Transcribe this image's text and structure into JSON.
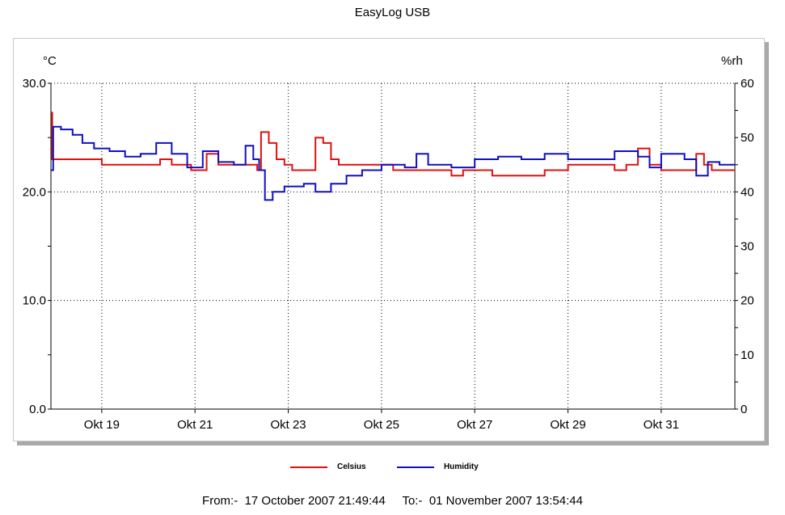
{
  "title": "EasyLog USB",
  "footer": {
    "from_label": "From:-",
    "from_value": "17 October 2007 21:49:44",
    "to_label": "To:-",
    "to_value": "01 November 2007 13:54:44"
  },
  "colors": {
    "celsius": "#e01010",
    "humidity": "#1010c0",
    "grid": "#000000"
  },
  "chart_data": {
    "type": "line",
    "title": "EasyLog USB",
    "x_range": [
      "2007-10-17 21:49:44",
      "2007-11-01 13:54:44"
    ],
    "x_ticks": [
      "Okt 19",
      "Okt 21",
      "Okt 23",
      "Okt 25",
      "Okt 27",
      "Okt 29",
      "Okt 31"
    ],
    "y_left": {
      "label": "°C",
      "ylim": [
        0,
        30
      ],
      "ticks": [
        "0.0",
        "10.0",
        "20.0",
        "30.0"
      ]
    },
    "y_right": {
      "label": "%rh",
      "ylim": [
        0,
        60
      ],
      "ticks": [
        "0",
        "10",
        "20",
        "30",
        "40",
        "50",
        "60"
      ]
    },
    "grid": true,
    "legend": "bottom",
    "series": [
      {
        "name": "Celsius",
        "axis": "left",
        "points": [
          [
            "2007-10-17 21:49",
            27.3
          ],
          [
            "2007-10-17 22:30",
            23.0
          ],
          [
            "2007-10-18 06:00",
            23.0
          ],
          [
            "2007-10-18 21:00",
            23.0
          ],
          [
            "2007-10-19 00:00",
            22.5
          ],
          [
            "2007-10-19 12:00",
            22.5
          ],
          [
            "2007-10-20 00:00",
            22.5
          ],
          [
            "2007-10-20 06:00",
            23.0
          ],
          [
            "2007-10-20 12:00",
            22.5
          ],
          [
            "2007-10-20 18:00",
            22.5
          ],
          [
            "2007-10-20 22:00",
            22.0
          ],
          [
            "2007-10-21 06:00",
            23.5
          ],
          [
            "2007-10-21 12:00",
            22.5
          ],
          [
            "2007-10-21 18:00",
            22.5
          ],
          [
            "2007-10-22 00:00",
            22.5
          ],
          [
            "2007-10-22 06:00",
            22.5
          ],
          [
            "2007-10-22 08:00",
            22.0
          ],
          [
            "2007-10-22 10:00",
            25.5
          ],
          [
            "2007-10-22 14:00",
            24.5
          ],
          [
            "2007-10-22 18:00",
            23.0
          ],
          [
            "2007-10-22 22:00",
            22.5
          ],
          [
            "2007-10-23 02:00",
            22.0
          ],
          [
            "2007-10-23 10:00",
            22.0
          ],
          [
            "2007-10-23 14:00",
            25.0
          ],
          [
            "2007-10-23 18:00",
            24.5
          ],
          [
            "2007-10-23 22:00",
            23.0
          ],
          [
            "2007-10-24 02:00",
            22.5
          ],
          [
            "2007-10-24 12:00",
            22.5
          ],
          [
            "2007-10-25 00:00",
            22.5
          ],
          [
            "2007-10-25 06:00",
            22.0
          ],
          [
            "2007-10-26 00:00",
            22.0
          ],
          [
            "2007-10-26 12:00",
            21.5
          ],
          [
            "2007-10-26 18:00",
            22.0
          ],
          [
            "2007-10-27 06:00",
            22.0
          ],
          [
            "2007-10-27 09:00",
            21.5
          ],
          [
            "2007-10-28 00:00",
            21.5
          ],
          [
            "2007-10-28 12:00",
            22.0
          ],
          [
            "2007-10-29 00:00",
            22.5
          ],
          [
            "2007-10-29 12:00",
            22.5
          ],
          [
            "2007-10-30 00:00",
            22.0
          ],
          [
            "2007-10-30 06:00",
            22.5
          ],
          [
            "2007-10-30 12:00",
            24.0
          ],
          [
            "2007-10-30 18:00",
            22.5
          ],
          [
            "2007-10-31 00:00",
            22.0
          ],
          [
            "2007-10-31 12:00",
            22.0
          ],
          [
            "2007-10-31 18:00",
            23.5
          ],
          [
            "2007-10-31 22:00",
            22.5
          ],
          [
            "2007-11-01 02:00",
            22.0
          ],
          [
            "2007-11-01 13:54",
            22.0
          ]
        ]
      },
      {
        "name": "Humidity",
        "axis": "right",
        "points": [
          [
            "2007-10-17 21:49",
            44.0
          ],
          [
            "2007-10-17 23:00",
            52.0
          ],
          [
            "2007-10-18 03:00",
            51.5
          ],
          [
            "2007-10-18 09:00",
            50.5
          ],
          [
            "2007-10-18 14:00",
            49.0
          ],
          [
            "2007-10-18 20:00",
            48.0
          ],
          [
            "2007-10-19 04:00",
            47.5
          ],
          [
            "2007-10-19 12:00",
            46.5
          ],
          [
            "2007-10-19 20:00",
            47.0
          ],
          [
            "2007-10-20 04:00",
            49.0
          ],
          [
            "2007-10-20 12:00",
            47.0
          ],
          [
            "2007-10-20 20:00",
            44.5
          ],
          [
            "2007-10-21 04:00",
            47.5
          ],
          [
            "2007-10-21 12:00",
            45.5
          ],
          [
            "2007-10-21 20:00",
            45.0
          ],
          [
            "2007-10-22 02:00",
            48.5
          ],
          [
            "2007-10-22 06:00",
            46.0
          ],
          [
            "2007-10-22 09:00",
            44.0
          ],
          [
            "2007-10-22 12:00",
            38.5
          ],
          [
            "2007-10-22 16:00",
            40.0
          ],
          [
            "2007-10-22 22:00",
            41.0
          ],
          [
            "2007-10-23 08:00",
            41.5
          ],
          [
            "2007-10-23 14:00",
            40.0
          ],
          [
            "2007-10-23 22:00",
            41.5
          ],
          [
            "2007-10-24 06:00",
            43.0
          ],
          [
            "2007-10-24 14:00",
            44.0
          ],
          [
            "2007-10-25 00:00",
            45.0
          ],
          [
            "2007-10-25 12:00",
            44.5
          ],
          [
            "2007-10-25 18:00",
            47.0
          ],
          [
            "2007-10-26 00:00",
            45.0
          ],
          [
            "2007-10-26 12:00",
            44.5
          ],
          [
            "2007-10-27 00:00",
            46.0
          ],
          [
            "2007-10-27 12:00",
            46.5
          ],
          [
            "2007-10-28 00:00",
            46.0
          ],
          [
            "2007-10-28 12:00",
            47.0
          ],
          [
            "2007-10-29 00:00",
            46.0
          ],
          [
            "2007-10-29 12:00",
            46.0
          ],
          [
            "2007-10-30 00:00",
            47.5
          ],
          [
            "2007-10-30 12:00",
            46.5
          ],
          [
            "2007-10-30 18:00",
            44.5
          ],
          [
            "2007-10-31 00:00",
            47.0
          ],
          [
            "2007-10-31 12:00",
            46.0
          ],
          [
            "2007-10-31 18:00",
            43.0
          ],
          [
            "2007-11-01 00:00",
            45.5
          ],
          [
            "2007-11-01 06:00",
            45.0
          ],
          [
            "2007-11-01 13:54",
            45.0
          ]
        ]
      }
    ]
  }
}
